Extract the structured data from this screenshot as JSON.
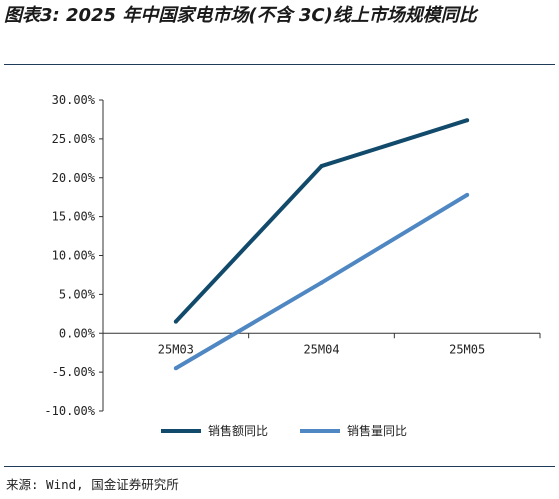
{
  "figure": {
    "title": "图表3: 2025 年中国家电市场(不含 3C)线上市场规模同比",
    "source": "来源: Wind, 国金证券研究所"
  },
  "chart_data": {
    "type": "line",
    "categories": [
      "25M03",
      "25M04",
      "25M05"
    ],
    "series": [
      {
        "name": "销售额同比",
        "values": [
          1.5,
          21.5,
          27.4
        ],
        "color": "#124a6b"
      },
      {
        "name": "销售量同比",
        "values": [
          -4.5,
          6.5,
          17.8
        ],
        "color": "#4f87c3"
      }
    ],
    "y_ticks": [
      "30.00%",
      "25.00%",
      "20.00%",
      "15.00%",
      "10.00%",
      "5.00%",
      "0.00%",
      "-5.00%",
      "-10.00%"
    ],
    "ylim": [
      -10,
      30
    ],
    "legend_position": "bottom",
    "grid": false
  }
}
